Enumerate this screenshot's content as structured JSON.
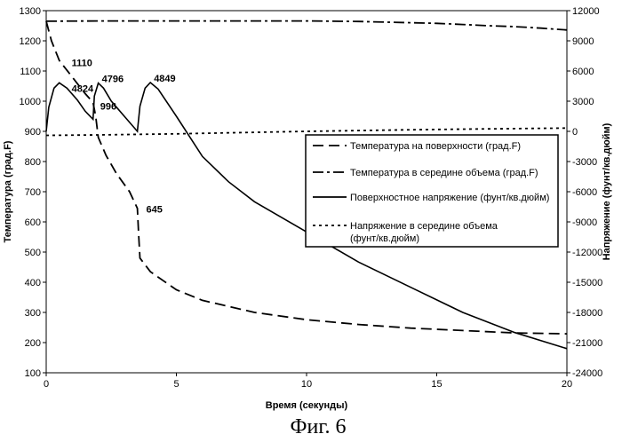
{
  "chart_data": {
    "type": "line",
    "xlabel": "Время (секунды)",
    "ylabel_left": "Температура (град.F)",
    "ylabel_right": "Напряжение (фунт/кв.дюйм)",
    "caption": "Фиг. 6",
    "x_range": [
      0,
      20
    ],
    "x_ticks": [
      0,
      5,
      10,
      15,
      20
    ],
    "y_left_range": [
      100,
      1300
    ],
    "y_left_ticks": [
      100,
      200,
      300,
      400,
      500,
      600,
      700,
      800,
      900,
      1000,
      1100,
      1200,
      1300
    ],
    "y_right_range": [
      -24000,
      12000
    ],
    "y_right_ticks": [
      -24000,
      -21000,
      -18000,
      -15000,
      -12000,
      -9000,
      -6000,
      -3000,
      0,
      3000,
      6000,
      9000,
      12000
    ],
    "grid": false,
    "legend_position": "right-middle",
    "series": [
      {
        "name": "Температура на поверхности (град.F)",
        "axis": "left",
        "dash": "long-dash",
        "points": [
          [
            0,
            1265
          ],
          [
            0.2,
            1200
          ],
          [
            0.5,
            1135
          ],
          [
            1.0,
            1080
          ],
          [
            1.5,
            1025
          ],
          [
            1.8,
            996
          ],
          [
            1.9,
            950
          ],
          [
            2.0,
            880
          ],
          [
            2.3,
            820
          ],
          [
            2.7,
            760
          ],
          [
            3.2,
            700
          ],
          [
            3.5,
            645
          ],
          [
            3.55,
            560
          ],
          [
            3.6,
            480
          ],
          [
            4.0,
            435
          ],
          [
            5.0,
            375
          ],
          [
            6.0,
            340
          ],
          [
            8.0,
            300
          ],
          [
            10.0,
            276
          ],
          [
            12.0,
            260
          ],
          [
            14.0,
            248
          ],
          [
            16.0,
            240
          ],
          [
            18.0,
            232
          ],
          [
            20.0,
            229
          ]
        ]
      },
      {
        "name": "Температура в середине объема (град.F)",
        "axis": "left",
        "dash": "dash-dot",
        "points": [
          [
            0,
            1265
          ],
          [
            2,
            1266
          ],
          [
            5,
            1266
          ],
          [
            8,
            1266
          ],
          [
            10,
            1266
          ],
          [
            12,
            1264
          ],
          [
            14,
            1260
          ],
          [
            15,
            1258
          ],
          [
            16,
            1254
          ],
          [
            17,
            1250
          ],
          [
            18,
            1247
          ],
          [
            19,
            1242
          ],
          [
            20,
            1236
          ]
        ]
      },
      {
        "name": "Поверхностное напряжение (фунт/кв.дюйм)",
        "axis": "right",
        "dash": "solid",
        "points": [
          [
            0,
            0
          ],
          [
            0.1,
            2400
          ],
          [
            0.3,
            4300
          ],
          [
            0.5,
            4824
          ],
          [
            0.8,
            4300
          ],
          [
            1.2,
            3100
          ],
          [
            1.5,
            2000
          ],
          [
            1.8,
            1200
          ],
          [
            1.85,
            3500
          ],
          [
            2.0,
            4796
          ],
          [
            2.2,
            4300
          ],
          [
            2.5,
            3000
          ],
          [
            3.0,
            1500
          ],
          [
            3.5,
            0
          ],
          [
            3.6,
            2500
          ],
          [
            3.8,
            4300
          ],
          [
            4.0,
            4849
          ],
          [
            4.3,
            4200
          ],
          [
            5.0,
            1500
          ],
          [
            6.0,
            -2500
          ],
          [
            7.0,
            -5000
          ],
          [
            8.0,
            -7000
          ],
          [
            9.0,
            -8500
          ],
          [
            10.0,
            -10000
          ],
          [
            12.0,
            -13000
          ],
          [
            14.0,
            -15500
          ],
          [
            16.0,
            -18000
          ],
          [
            18.0,
            -20000
          ],
          [
            20.0,
            -21600
          ]
        ]
      },
      {
        "name": "Напряжение в середине объема\n(фунт/кв.дюйм)",
        "axis": "right",
        "dash": "dotted",
        "points": [
          [
            0,
            -400
          ],
          [
            2,
            -350
          ],
          [
            5,
            -250
          ],
          [
            8,
            -100
          ],
          [
            10,
            0
          ],
          [
            12,
            80
          ],
          [
            14,
            160
          ],
          [
            16,
            220
          ],
          [
            18,
            270
          ],
          [
            20,
            330
          ]
        ]
      }
    ],
    "annotations": [
      {
        "text": "1110",
        "x": 0.5,
        "y": 1110,
        "axis": "left"
      },
      {
        "text": "4824",
        "x": 0.5,
        "y": 4824,
        "axis": "right"
      },
      {
        "text": "4796",
        "x": 2.0,
        "y": 4796,
        "axis": "right"
      },
      {
        "text": "4849",
        "x": 4.0,
        "y": 4849,
        "axis": "right"
      },
      {
        "text": "996",
        "x": 1.8,
        "y": 996,
        "axis": "left"
      },
      {
        "text": "645",
        "x": 3.5,
        "y": 645,
        "axis": "left"
      }
    ]
  }
}
